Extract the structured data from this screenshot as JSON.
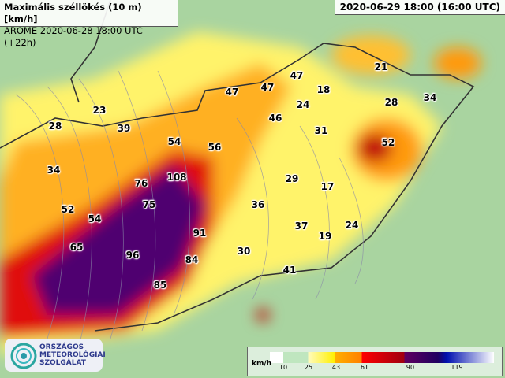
{
  "header": {
    "title": "Maximális széllökés (10 m) [km/h]",
    "subtitle": "AROME 2020-06-28 18:00 UTC (+22h)",
    "valid_time": "2020-06-29 18:00 (16:00 UTC)"
  },
  "legend": {
    "unit": "km/h",
    "ticks": [
      "10",
      "25",
      "43",
      "61",
      "90",
      "119"
    ],
    "colors": [
      "#ffffff",
      "#bfe6bf",
      "#fff000",
      "#ff8000",
      "#ff0000",
      "#600060",
      "#0010b0"
    ]
  },
  "logo": {
    "line1": "ORSZÁGOS",
    "line2": "METEOROLÓGIAI",
    "line3": "SZOLGÁLAT"
  },
  "gust_labels": [
    "23",
    "28",
    "39",
    "34",
    "52",
    "54",
    "65",
    "76",
    "108",
    "75",
    "54",
    "56",
    "47",
    "47",
    "47",
    "18",
    "21",
    "28",
    "34",
    "24",
    "46",
    "31",
    "52",
    "29",
    "17",
    "36",
    "37",
    "19",
    "24",
    "91",
    "96",
    "84",
    "30",
    "41",
    "85"
  ]
}
